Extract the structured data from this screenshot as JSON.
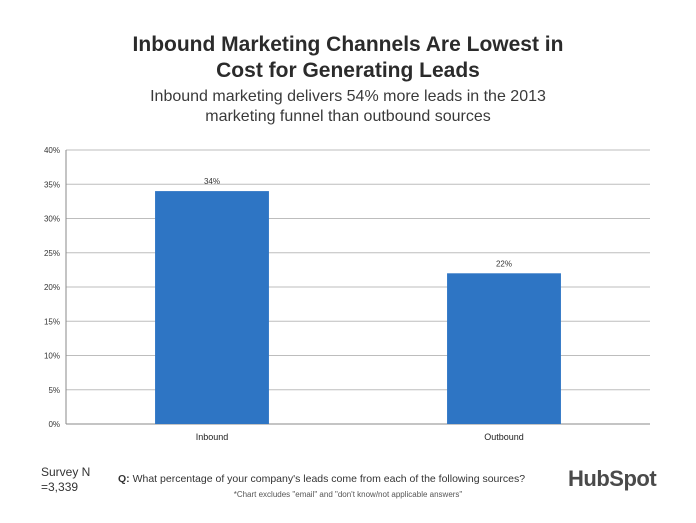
{
  "title": {
    "line1": "Inbound Marketing Channels Are Lowest in",
    "line2": "Cost for Generating Leads"
  },
  "subtitle": {
    "line1": "Inbound marketing delivers 54% more leads in the 2013",
    "line2": "marketing funnel than outbound sources"
  },
  "chart_data": {
    "type": "bar",
    "categories": [
      "Inbound",
      "Outbound"
    ],
    "values": [
      34,
      22
    ],
    "data_labels": [
      "34%",
      "22%"
    ],
    "ylim": [
      0,
      40
    ],
    "yticks": [
      0,
      5,
      10,
      15,
      20,
      25,
      30,
      35,
      40
    ],
    "ytick_labels": [
      "0%",
      "5%",
      "10%",
      "15%",
      "20%",
      "25%",
      "30%",
      "35%",
      "40%"
    ],
    "xlabel": "",
    "ylabel": "",
    "grid": true,
    "bar_color": "#2e75c4",
    "grid_color": "#bdbdbd"
  },
  "footer": {
    "survey_line1": "Survey N",
    "survey_line2": "=3,339",
    "question_prefix": "Q:",
    "question_text": "What percentage of your company's leads come from each of the following sources?",
    "note": "*Chart excludes \"email\" and \"don't know/not applicable answers\"",
    "logo_text": "HubSpot",
    "logo_accent_color": "#f47622"
  }
}
